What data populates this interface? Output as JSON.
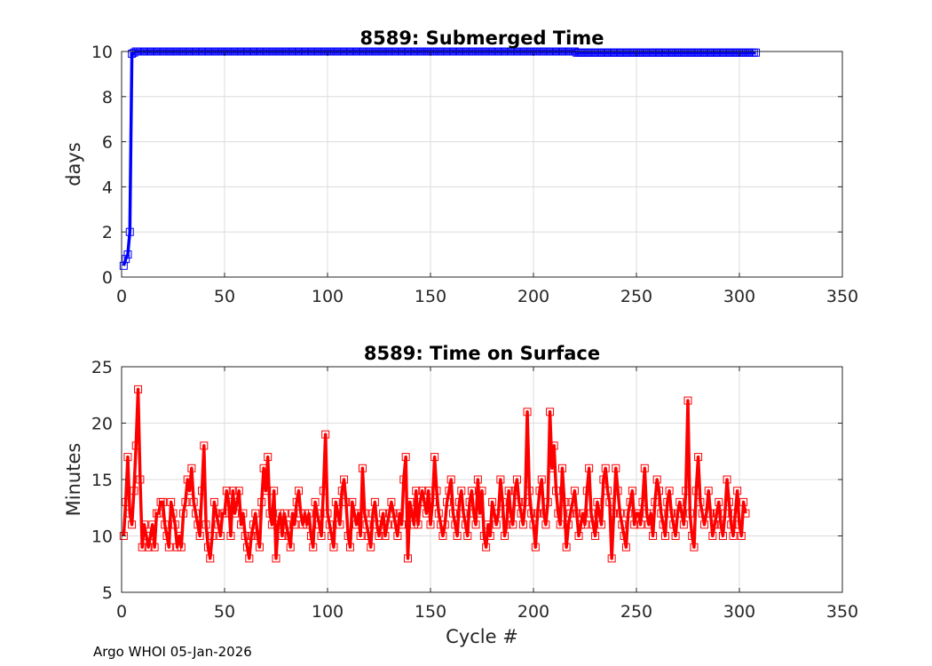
{
  "credit": "Argo WHOI 05-Jan-2026",
  "chart_data": [
    {
      "type": "line",
      "title": "8589: Submerged Time",
      "xlabel": "",
      "ylabel": "days",
      "xlim": [
        0,
        350
      ],
      "ylim": [
        0,
        10
      ],
      "xticks": [
        0,
        50,
        100,
        150,
        200,
        250,
        300,
        350
      ],
      "yticks": [
        0,
        2,
        4,
        6,
        8,
        10
      ],
      "grid": true,
      "marker": "square",
      "color": "#0000ff",
      "series": [
        {
          "name": "Submerged Time",
          "x_start": 1,
          "values": [
            0.5,
            0.8,
            1.0,
            2.0,
            9.9,
            9.95,
            10.0,
            10.0,
            10.0,
            10.0,
            10.0,
            10.0,
            10.0,
            10.0,
            10.0,
            10.0,
            10.0,
            10.0,
            10.0,
            10.0,
            10.0,
            10.0,
            10.0,
            10.0,
            10.0,
            10.0,
            10.0,
            10.0,
            10.0,
            10.0,
            10.0,
            10.0,
            10.0,
            10.0,
            10.0,
            10.0,
            10.0,
            10.0,
            10.0,
            10.0,
            10.0,
            10.0,
            10.0,
            10.0,
            10.0,
            10.0,
            10.0,
            10.0,
            10.0,
            10.0,
            10.0,
            10.0,
            10.0,
            10.0,
            10.0,
            10.0,
            10.0,
            10.0,
            10.0,
            10.0,
            10.0,
            10.0,
            10.0,
            10.0,
            10.0,
            10.0,
            10.0,
            10.0,
            10.0,
            10.0,
            10.0,
            10.0,
            10.0,
            10.0,
            10.0,
            10.0,
            10.0,
            10.0,
            10.0,
            10.0,
            10.0,
            10.0,
            10.0,
            10.0,
            10.0,
            10.0,
            10.0,
            10.0,
            10.0,
            10.0,
            10.0,
            10.0,
            10.0,
            10.0,
            10.0,
            10.0,
            10.0,
            10.0,
            10.0,
            10.0,
            10.0,
            10.0,
            10.0,
            10.0,
            10.0,
            10.0,
            10.0,
            10.0,
            10.0,
            10.0,
            10.0,
            10.0,
            10.0,
            10.0,
            10.0,
            10.0,
            10.0,
            10.0,
            10.0,
            10.0,
            10.0,
            10.0,
            10.0,
            10.0,
            10.0,
            10.0,
            10.0,
            10.0,
            10.0,
            10.0,
            10.0,
            10.0,
            10.0,
            10.0,
            10.0,
            10.0,
            10.0,
            10.0,
            10.0,
            10.0,
            10.0,
            10.0,
            10.0,
            10.0,
            10.0,
            10.0,
            10.0,
            10.0,
            10.0,
            10.0,
            10.0,
            10.0,
            10.0,
            10.0,
            10.0,
            10.0,
            10.0,
            10.0,
            10.0,
            10.0,
            10.0,
            10.0,
            10.0,
            10.0,
            10.0,
            10.0,
            10.0,
            10.0,
            10.0,
            10.0,
            10.0,
            10.0,
            10.0,
            10.0,
            10.0,
            10.0,
            10.0,
            10.0,
            10.0,
            10.0,
            10.0,
            10.0,
            10.0,
            10.0,
            10.0,
            10.0,
            10.0,
            10.0,
            10.0,
            10.0,
            10.0,
            10.0,
            10.0,
            10.0,
            10.0,
            10.0,
            10.0,
            10.0,
            10.0,
            10.0,
            10.0,
            10.0,
            10.0,
            10.0,
            10.0,
            10.0,
            10.0,
            10.0,
            10.0,
            10.0,
            10.0,
            10.0,
            10.0,
            10.0,
            10.0,
            10.0,
            10.0,
            10.0,
            10.0,
            10.0,
            9.95,
            9.95,
            9.95,
            9.95,
            9.95,
            9.95,
            9.95,
            9.95,
            9.95,
            9.95,
            9.95,
            9.95,
            9.95,
            9.95,
            9.95,
            9.95,
            9.95,
            9.95,
            9.95,
            9.95,
            9.95,
            9.95,
            9.95,
            9.95,
            9.95,
            9.95,
            9.95,
            9.95,
            9.95,
            9.95,
            9.95,
            9.95,
            9.95,
            9.95,
            9.95,
            9.95,
            9.95,
            9.95,
            9.95,
            9.95,
            9.95,
            9.95,
            9.95,
            9.95,
            9.95,
            9.95,
            9.95,
            9.95,
            9.95,
            9.95,
            9.95,
            9.95,
            9.95,
            9.95,
            9.95,
            9.95,
            9.95,
            9.95,
            9.95,
            9.95,
            9.95,
            9.95,
            9.95,
            9.95,
            9.95,
            9.95,
            9.95,
            9.95,
            9.95,
            9.95,
            9.95,
            9.95,
            9.95,
            9.95,
            9.95,
            9.95,
            9.95,
            9.95,
            9.95,
            9.95,
            9.95,
            9.95,
            9.95,
            9.95,
            9.95,
            9.95,
            9.95,
            9.95
          ]
        }
      ]
    },
    {
      "type": "line",
      "title": "8589: Time on Surface",
      "xlabel": "Cycle #",
      "ylabel": "Minutes",
      "xlim": [
        0,
        350
      ],
      "ylim": [
        5,
        25
      ],
      "xticks": [
        0,
        50,
        100,
        150,
        200,
        250,
        300,
        350
      ],
      "yticks": [
        5,
        10,
        15,
        20,
        25
      ],
      "grid": true,
      "marker": "square",
      "color": "#ff0000",
      "series": [
        {
          "name": "Time on Surface",
          "x_start": 1,
          "values": [
            10,
            13,
            17,
            12,
            11,
            14,
            18,
            23,
            15,
            9,
            11,
            10,
            9,
            10,
            11,
            9,
            12,
            12,
            13,
            13,
            11,
            10,
            9,
            13,
            12,
            11,
            9,
            10,
            9,
            12,
            13,
            15,
            14,
            16,
            13,
            12,
            11,
            10,
            14,
            18,
            11,
            9,
            8,
            10,
            13,
            12,
            11,
            10,
            12,
            12,
            14,
            13,
            10,
            14,
            12,
            13,
            14,
            11,
            12,
            10,
            9,
            8,
            10,
            11,
            12,
            10,
            9,
            13,
            16,
            14,
            17,
            12,
            11,
            14,
            8,
            11,
            12,
            10,
            12,
            11,
            10,
            9,
            12,
            11,
            13,
            14,
            12,
            11,
            12,
            11,
            12,
            10,
            9,
            13,
            12,
            11,
            10,
            14,
            19,
            12,
            11,
            10,
            9,
            13,
            12,
            11,
            14,
            15,
            13,
            10,
            9,
            13,
            12,
            11,
            12,
            10,
            16,
            12,
            11,
            10,
            9,
            12,
            13,
            11,
            10,
            11,
            12,
            10,
            11,
            12,
            13,
            12,
            11,
            10,
            12,
            11,
            15,
            17,
            8,
            13,
            12,
            11,
            14,
            11,
            13,
            14,
            13,
            12,
            14,
            11,
            13,
            17,
            14,
            12,
            11,
            10,
            11,
            13,
            14,
            15,
            12,
            11,
            10,
            13,
            14,
            12,
            11,
            10,
            13,
            14,
            12,
            11,
            15,
            12,
            14,
            10,
            9,
            11,
            10,
            13,
            12,
            11,
            12,
            15,
            13,
            10,
            11,
            14,
            12,
            11,
            14,
            15,
            13,
            12,
            11,
            13,
            21,
            14,
            12,
            11,
            9,
            12,
            14,
            15,
            12,
            11,
            13,
            21,
            16,
            18,
            14,
            12,
            11,
            16,
            13,
            9,
            11,
            12,
            13,
            14,
            12,
            10,
            11,
            12,
            11,
            14,
            16,
            12,
            11,
            10,
            13,
            12,
            11,
            15,
            16,
            14,
            13,
            8,
            12,
            16,
            14,
            12,
            11,
            10,
            9,
            12,
            13,
            14,
            11,
            12,
            12,
            11,
            13,
            16,
            12,
            11,
            12,
            10,
            13,
            15,
            14,
            12,
            11,
            10,
            13,
            14,
            12,
            11,
            10,
            12,
            13,
            12,
            11,
            14,
            22,
            12,
            10,
            9,
            14,
            17,
            13,
            12,
            11,
            12,
            14,
            12,
            10,
            11,
            12,
            13,
            11,
            10,
            12,
            15,
            13,
            11,
            10,
            12,
            14,
            11,
            10,
            13,
            12
          ]
        }
      ]
    }
  ]
}
